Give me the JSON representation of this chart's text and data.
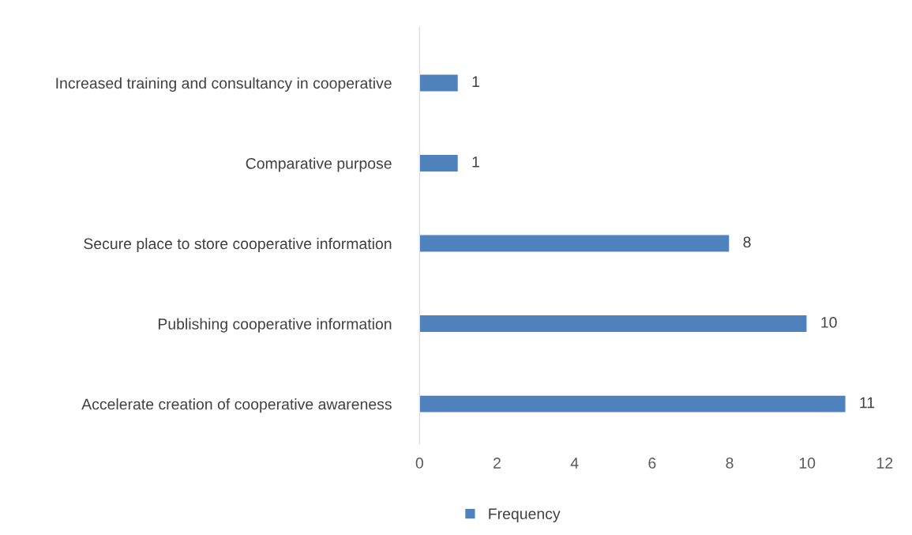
{
  "chart_data": {
    "type": "bar",
    "orientation": "horizontal",
    "categories": [
      "Increased training and consultancy in cooperative",
      "Comparative purpose",
      "Secure place to store cooperative information",
      "Publishing cooperative information",
      "Accelerate creation of cooperative awareness"
    ],
    "series": [
      {
        "name": "Frequency",
        "color": "#4f81bd",
        "values": [
          1,
          1,
          8,
          10,
          11
        ]
      }
    ],
    "xlim": [
      0,
      12
    ],
    "xticks": [
      0,
      2,
      4,
      6,
      8,
      10,
      12
    ],
    "data_labels": true,
    "grid": false,
    "legend": "bottom"
  }
}
